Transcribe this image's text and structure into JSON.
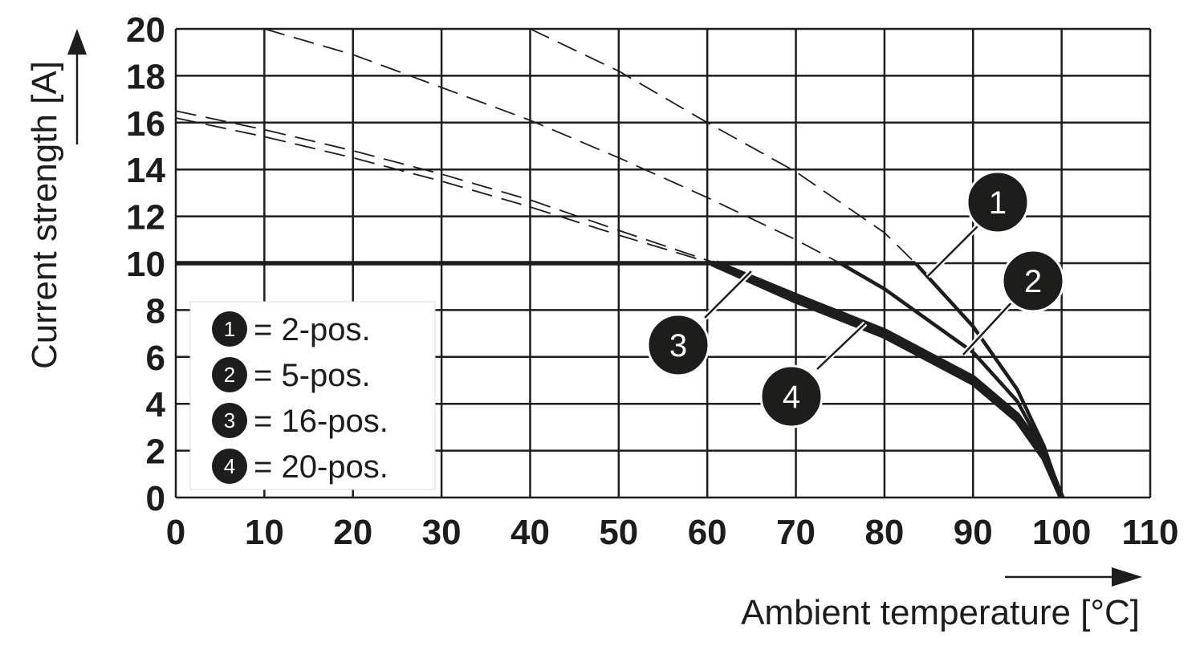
{
  "chart_data": {
    "type": "line",
    "xlabel": "Ambient temperature [°C]",
    "ylabel": "Current strength [A]",
    "xlim": [
      0,
      110
    ],
    "ylim": [
      0,
      20
    ],
    "x_ticks": [
      "0",
      "10",
      "20",
      "30",
      "40",
      "50",
      "60",
      "70",
      "80",
      "90",
      "100",
      "110"
    ],
    "y_ticks": [
      "0",
      "2",
      "4",
      "6",
      "8",
      "10",
      "12",
      "14",
      "16",
      "18",
      "20"
    ],
    "grid": true,
    "legend_position": "bottom-left",
    "current_limit": 10,
    "series": [
      {
        "marker": "1",
        "legend_label": "= 2-pos.",
        "values": [
          [
            40,
            20
          ],
          [
            50,
            18.2
          ],
          [
            60,
            16.0
          ],
          [
            70,
            13.9
          ],
          [
            80,
            11.3
          ],
          [
            83.5,
            10
          ],
          [
            90,
            7.3
          ],
          [
            95,
            4.6
          ],
          [
            98,
            2.2
          ],
          [
            100,
            0
          ]
        ]
      },
      {
        "marker": "2",
        "legend_label": "= 5-pos.",
        "values": [
          [
            10,
            20
          ],
          [
            20,
            18.9
          ],
          [
            30,
            17.5
          ],
          [
            40,
            16.1
          ],
          [
            50,
            14.5
          ],
          [
            60,
            12.8
          ],
          [
            70,
            11.0
          ],
          [
            75,
            10
          ],
          [
            80,
            8.9
          ],
          [
            90,
            6.2
          ],
          [
            95,
            4.1
          ],
          [
            98,
            2.0
          ],
          [
            100,
            0
          ]
        ]
      },
      {
        "marker": "3",
        "legend_label": "= 16-pos.",
        "values": [
          [
            0,
            16.5
          ],
          [
            10,
            15.7
          ],
          [
            20,
            14.8
          ],
          [
            30,
            13.8
          ],
          [
            40,
            12.7
          ],
          [
            50,
            11.4
          ],
          [
            61,
            10
          ],
          [
            70,
            8.6
          ],
          [
            80,
            7.1
          ],
          [
            90,
            5.1
          ],
          [
            95,
            3.5
          ],
          [
            98,
            1.9
          ],
          [
            100,
            0
          ]
        ]
      },
      {
        "marker": "4",
        "legend_label": "= 20-pos.",
        "values": [
          [
            0,
            16.2
          ],
          [
            10,
            15.4
          ],
          [
            20,
            14.5
          ],
          [
            30,
            13.5
          ],
          [
            40,
            12.4
          ],
          [
            50,
            11.2
          ],
          [
            60.5,
            10
          ],
          [
            70,
            8.4
          ],
          [
            80,
            6.9
          ],
          [
            90,
            4.9
          ],
          [
            95,
            3.3
          ],
          [
            98,
            1.7
          ],
          [
            100,
            0
          ]
        ]
      }
    ],
    "colors": {
      "line": "#1d1d1b",
      "grid": "#1d1d1b",
      "marker_fill": "#1d1d1b",
      "marker_text": "#ffffff"
    }
  }
}
